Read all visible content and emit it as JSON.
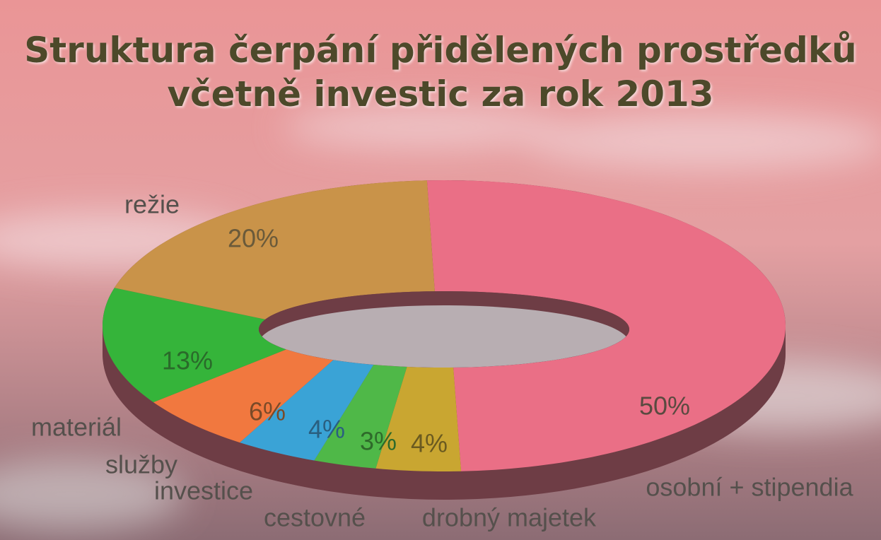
{
  "chart_data": {
    "type": "donut3d",
    "title": [
      "Struktura čerpání přidělených prostředků",
      "včetně investic za rok 2013"
    ],
    "categories": [
      "osobní + stipendia",
      "drobný majetek",
      "cestovné",
      "investice",
      "služby",
      "materiál",
      "režie"
    ],
    "values": [
      50,
      4,
      3,
      4,
      6,
      13,
      20
    ],
    "value_labels": [
      "50%",
      "4%",
      "3%",
      "4%",
      "6%",
      "13%",
      "20%"
    ],
    "colors": [
      "#ea6f86",
      "#c9a631",
      "#4fb848",
      "#3aa3d6",
      "#f1783f",
      "#35b43a",
      "#c99349"
    ]
  }
}
